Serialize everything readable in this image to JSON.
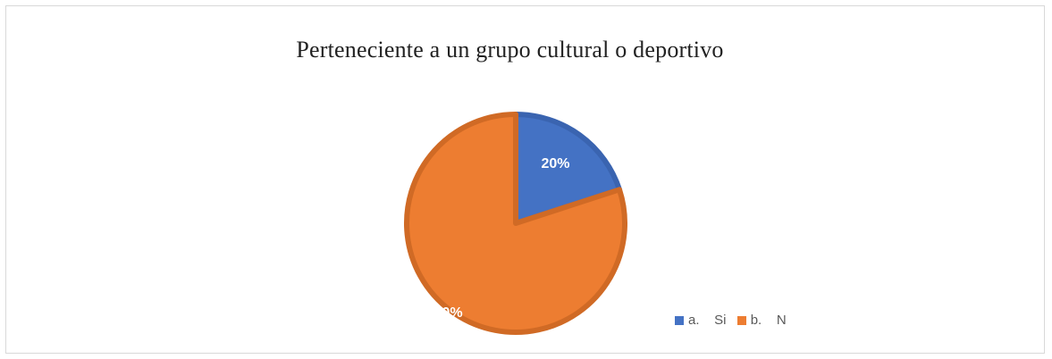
{
  "chart_data": {
    "type": "pie",
    "title": "Perteneciente a un grupo cultural  o deportivo",
    "categories": [
      "a.    Si",
      "b.    N"
    ],
    "values": [
      20,
      80
    ],
    "labels": [
      "20%",
      "80%"
    ],
    "colors": [
      "#4472c4",
      "#ed7d31"
    ],
    "legend_position": "bottom-right"
  }
}
